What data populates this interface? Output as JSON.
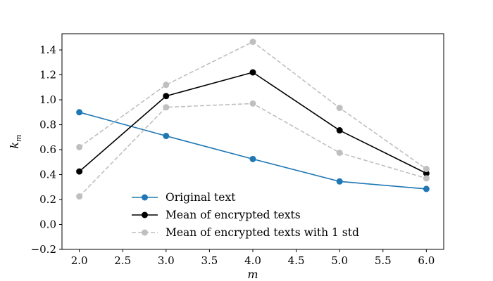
{
  "chart_data": {
    "type": "line",
    "x": [
      2.0,
      3.0,
      4.0,
      5.0,
      6.0
    ],
    "xlim": [
      1.8,
      6.2
    ],
    "ylim": [
      -0.2,
      1.53
    ],
    "xticks": [
      "2.0",
      "2.5",
      "3.0",
      "3.5",
      "4.0",
      "4.5",
      "5.0",
      "5.5",
      "6.0"
    ],
    "yticks": [
      "−0.2",
      "0.0",
      "0.2",
      "0.4",
      "0.6",
      "0.8",
      "1.0",
      "1.2",
      "1.4"
    ],
    "xlabel": "m",
    "ylabel_main": "k",
    "ylabel_sub": "m",
    "grid": false,
    "legend_position": "lower-center",
    "series": [
      {
        "name": "Original text",
        "color": "#1f77b4",
        "style": "solid",
        "marker": "circle",
        "values": [
          0.9,
          0.71,
          0.525,
          0.345,
          0.285
        ]
      },
      {
        "name": "Mean of encrypted texts",
        "color": "#000000",
        "style": "solid",
        "marker": "circle",
        "values": [
          0.425,
          1.03,
          1.22,
          0.755,
          0.41
        ]
      },
      {
        "name": "Mean of encrypted texts with 1 std",
        "color": "#bfbfbf",
        "style": "dashed",
        "marker": "circle",
        "values": [
          0.62,
          1.12,
          1.465,
          0.935,
          0.445
        ]
      },
      {
        "name": "",
        "color": "#bfbfbf",
        "style": "dashed",
        "marker": "circle",
        "legend": false,
        "values": [
          0.225,
          0.94,
          0.97,
          0.575,
          0.37
        ]
      }
    ]
  }
}
